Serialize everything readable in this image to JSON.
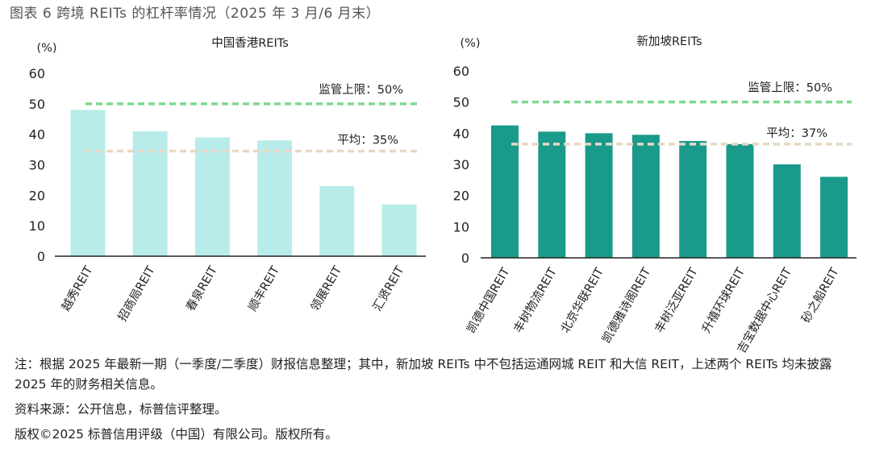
{
  "figure_title": "图表 6 跨境 REITs 的杠杆率情况（2025 年 3 月/6 月末）",
  "colors": {
    "hk_bar": "#b8ecea",
    "sg_bar": "#1a9a8a",
    "limit_line": "#7ed98f",
    "avg_line": "#e6d8c4",
    "axis": "#222222"
  },
  "chart_data": [
    {
      "type": "bar",
      "title": "中国香港REITs",
      "ylabel": "(%)",
      "ylim": [
        0,
        60
      ],
      "yticks": [
        0,
        10,
        20,
        30,
        40,
        50,
        60
      ],
      "categories": [
        "越秀REIT",
        "招商局REIT",
        "春泉REIT",
        "顺丰REIT",
        "领展REIT",
        "汇贤REIT"
      ],
      "values": [
        48,
        41,
        39,
        38,
        23,
        17
      ],
      "limit": {
        "label": "监管上限：50%",
        "value": 50
      },
      "average": {
        "label": "平均：35%",
        "value": 34.5
      }
    },
    {
      "type": "bar",
      "title": "新加坡REITs",
      "ylabel": "(%)",
      "ylim": [
        0,
        60
      ],
      "yticks": [
        0,
        10,
        20,
        30,
        40,
        50,
        60
      ],
      "categories": [
        "凯德中国REIT",
        "丰树物流REIT",
        "北京华联REIT",
        "凯德雅诗阁REIT",
        "丰树泛亚REIT",
        "升禧环球REIT",
        "吉宝数据中心REIT",
        "砂之船REIT"
      ],
      "values": [
        42.5,
        40.5,
        40,
        39.5,
        37.5,
        36.5,
        30,
        26
      ],
      "limit": {
        "label": "监管上限：50%",
        "value": 50
      },
      "average": {
        "label": "平均：37%",
        "value": 36.5
      }
    }
  ],
  "notes": {
    "note1": "注：根据 2025 年最新一期（一季度/二季度）财报信息整理；其中，新加坡 REITs 中不包括运通网城 REIT 和大信 REIT，上述两个 REITs 均未披露 2025 年的财务相关信息。",
    "source": "资料来源：公开信息，标普信评整理。",
    "copyright": "版权©2025 标普信用评级（中国）有限公司。版权所有。"
  }
}
